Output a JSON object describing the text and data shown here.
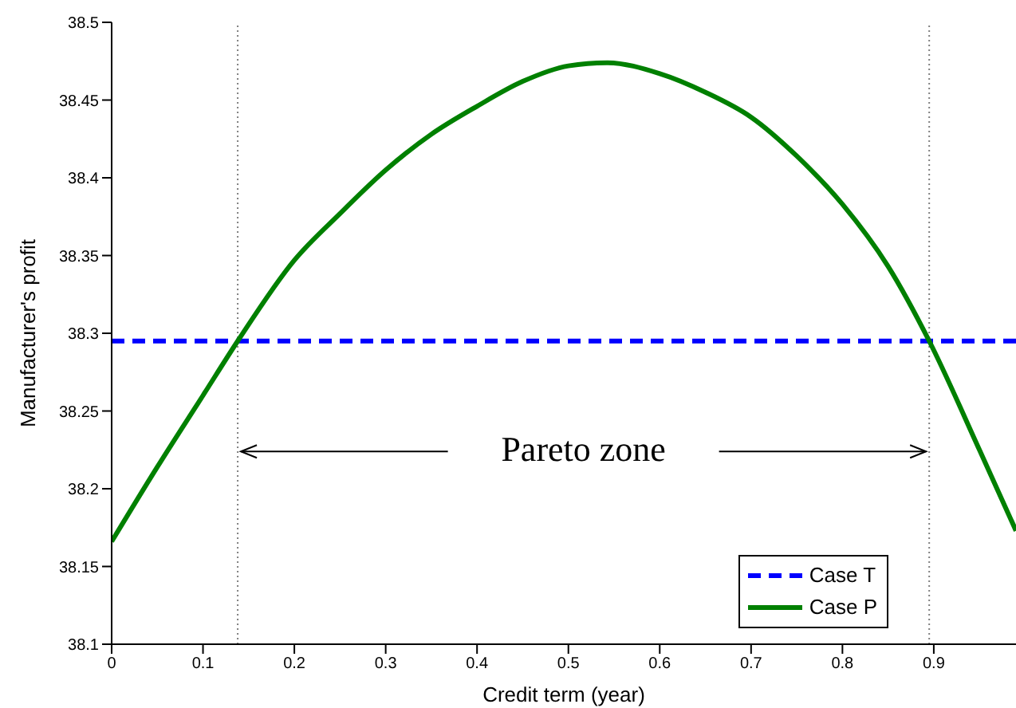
{
  "chart_data": {
    "type": "line",
    "xlabel": "Credit term (year)",
    "ylabel": "Manufacturer's profit",
    "xlim": [
      0,
      0.99
    ],
    "xticks": [
      0,
      0.1,
      0.2,
      0.3,
      0.4,
      0.5,
      0.6,
      0.7,
      0.8,
      0.9
    ],
    "ylim": [
      38.1,
      38.5
    ],
    "yticks": [
      38.1,
      38.15,
      38.2,
      38.25,
      38.3,
      38.35,
      38.4,
      38.45,
      38.5
    ],
    "series": [
      {
        "name": "Case T",
        "color": "#0000ff",
        "line_style": "dashed",
        "x": [
          0,
          0.99
        ],
        "values": [
          38.295,
          38.295
        ]
      },
      {
        "name": "Case P",
        "color": "#008000",
        "line_style": "solid",
        "x": [
          0,
          0.05,
          0.1,
          0.138,
          0.2,
          0.25,
          0.3,
          0.35,
          0.4,
          0.45,
          0.5,
          0.542,
          0.6,
          0.65,
          0.7,
          0.75,
          0.8,
          0.85,
          0.895,
          0.95,
          0.99
        ],
        "values": [
          38.166,
          38.214,
          38.26,
          38.295,
          38.347,
          38.377,
          38.405,
          38.428,
          38.446,
          38.462,
          38.472,
          38.474,
          38.467,
          38.455,
          38.439,
          38.414,
          38.383,
          38.343,
          38.295,
          38.225,
          38.173
        ]
      }
    ],
    "ref_lines": [
      {
        "axis": "x",
        "value": 0.138,
        "color": "#808080",
        "line_style": "dotted"
      },
      {
        "axis": "x",
        "value": 0.895,
        "color": "#808080",
        "line_style": "dotted"
      }
    ],
    "annotations": [
      "Pareto zone"
    ],
    "legend": "bottom right",
    "marker": "none"
  }
}
